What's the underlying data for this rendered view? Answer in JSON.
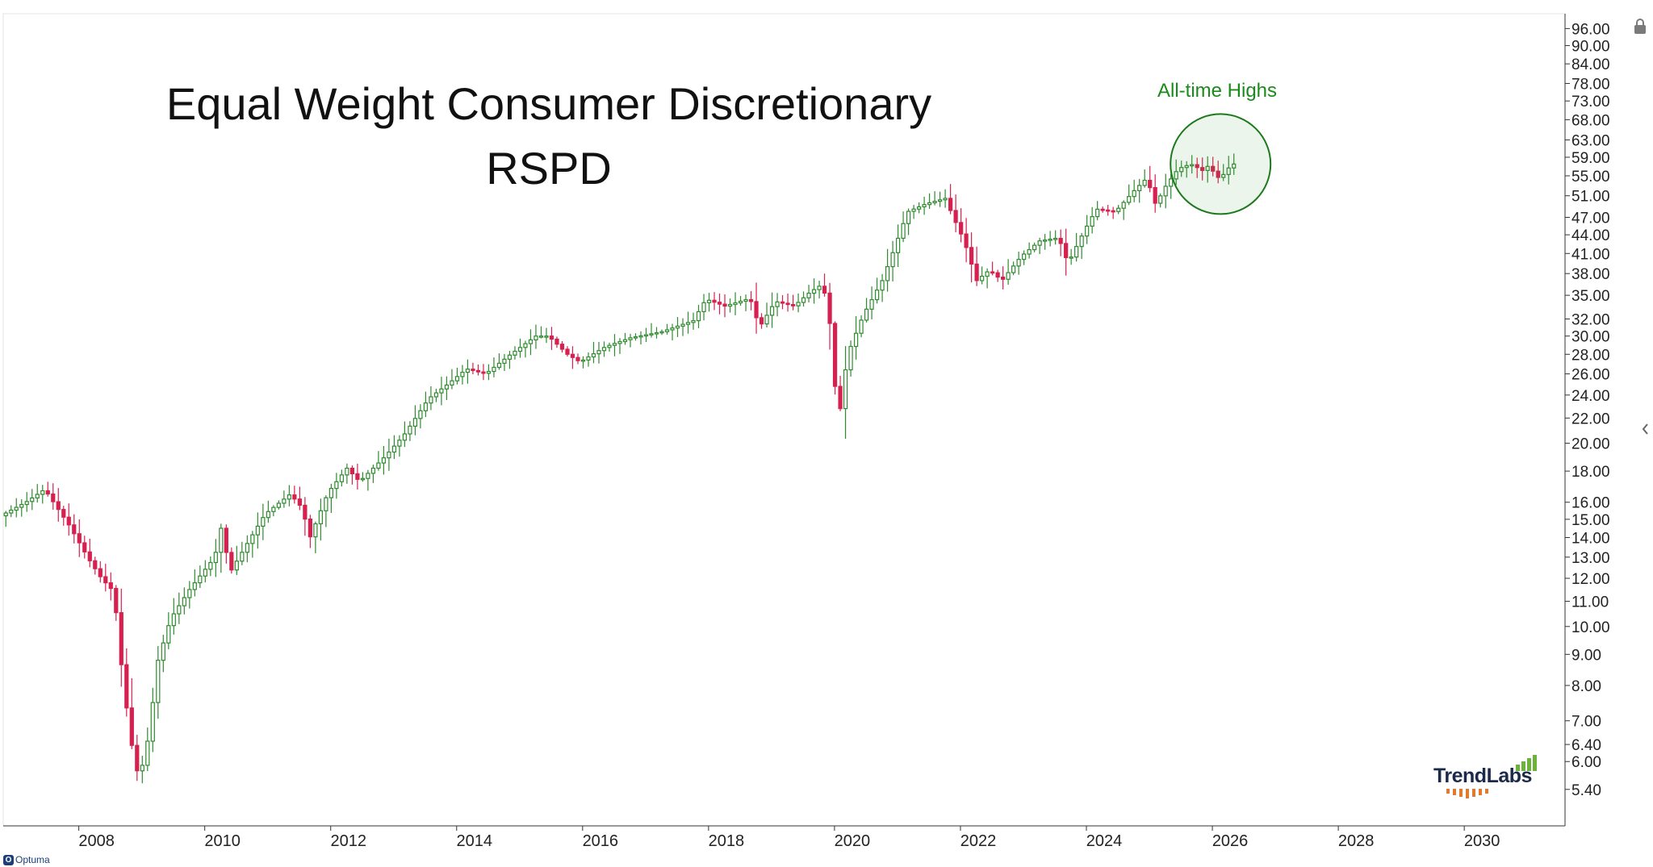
{
  "chart_data": {
    "type": "candlestick",
    "title": "Equal Weight Consumer Discretionary",
    "subtitle": "RSPD",
    "annotation": "All-time Highs",
    "y_scale": "log",
    "ylim": [
      5.0,
      97.0
    ],
    "xlim": [
      2006.8,
      2031.6
    ],
    "x_ticks": [
      "2008",
      "2010",
      "2012",
      "2014",
      "2016",
      "2018",
      "2020",
      "2022",
      "2024",
      "2026",
      "2028",
      "2030"
    ],
    "y_ticks": [
      "96.00",
      "90.00",
      "84.00",
      "78.00",
      "73.00",
      "68.00",
      "63.00",
      "59.00",
      "55.00",
      "51.00",
      "47.00",
      "44.00",
      "41.00",
      "38.00",
      "35.00",
      "32.00",
      "30.00",
      "28.00",
      "26.00",
      "24.00",
      "22.00",
      "20.00",
      "18.00",
      "16.00",
      "15.00",
      "14.00",
      "13.00",
      "12.00",
      "11.00",
      "10.00",
      "9.00",
      "8.00",
      "7.00",
      "6.40",
      "6.00",
      "5.40"
    ],
    "grid": false,
    "up_color": "#2e8b2e",
    "down_color": "#d6204f",
    "annotation_color": "#1a8a1a",
    "highlight": {
      "x": 2026.13,
      "y": 57.5
    },
    "path": [
      [
        2006.8,
        15.2
      ],
      [
        2007.2,
        16.0
      ],
      [
        2007.5,
        16.8
      ],
      [
        2007.9,
        14.6
      ],
      [
        2008.2,
        12.9
      ],
      [
        2008.4,
        12.0
      ],
      [
        2008.6,
        11.4
      ],
      [
        2008.75,
        8.0
      ],
      [
        2008.9,
        6.2
      ],
      [
        2009.0,
        5.6
      ],
      [
        2009.15,
        6.6
      ],
      [
        2009.3,
        8.8
      ],
      [
        2009.5,
        10.3
      ],
      [
        2009.8,
        11.5
      ],
      [
        2010.2,
        13.0
      ],
      [
        2010.3,
        14.5
      ],
      [
        2010.45,
        12.3
      ],
      [
        2010.7,
        13.6
      ],
      [
        2011.0,
        15.3
      ],
      [
        2011.4,
        16.5
      ],
      [
        2011.6,
        15.6
      ],
      [
        2011.7,
        13.9
      ],
      [
        2012.0,
        16.6
      ],
      [
        2012.3,
        18.2
      ],
      [
        2012.5,
        17.3
      ],
      [
        2012.9,
        19.0
      ],
      [
        2013.2,
        20.6
      ],
      [
        2013.6,
        23.7
      ],
      [
        2013.9,
        25.0
      ],
      [
        2014.2,
        26.5
      ],
      [
        2014.5,
        26.0
      ],
      [
        2014.9,
        28.0
      ],
      [
        2015.3,
        30.0
      ],
      [
        2015.5,
        30.0
      ],
      [
        2015.8,
        28.0
      ],
      [
        2016.0,
        27.2
      ],
      [
        2016.4,
        28.8
      ],
      [
        2016.8,
        29.8
      ],
      [
        2017.3,
        30.5
      ],
      [
        2017.8,
        31.8
      ],
      [
        2018.0,
        34.5
      ],
      [
        2018.3,
        33.6
      ],
      [
        2018.7,
        34.6
      ],
      [
        2018.85,
        31.0
      ],
      [
        2019.1,
        34.2
      ],
      [
        2019.4,
        33.6
      ],
      [
        2019.65,
        35.4
      ],
      [
        2019.85,
        36.5
      ],
      [
        2019.95,
        33.0
      ],
      [
        2020.1,
        21.5
      ],
      [
        2020.25,
        28.0
      ],
      [
        2020.5,
        32.5
      ],
      [
        2020.8,
        37.0
      ],
      [
        2021.0,
        42.0
      ],
      [
        2021.2,
        48.0
      ],
      [
        2021.5,
        49.5
      ],
      [
        2021.8,
        50.5
      ],
      [
        2021.95,
        46.5
      ],
      [
        2022.1,
        43.0
      ],
      [
        2022.3,
        37.0
      ],
      [
        2022.5,
        38.5
      ],
      [
        2022.7,
        37.0
      ],
      [
        2023.0,
        40.5
      ],
      [
        2023.3,
        43.0
      ],
      [
        2023.6,
        43.5
      ],
      [
        2023.75,
        39.5
      ],
      [
        2024.0,
        44.5
      ],
      [
        2024.2,
        48.5
      ],
      [
        2024.5,
        48.0
      ],
      [
        2024.8,
        52.0
      ],
      [
        2025.0,
        54.5
      ],
      [
        2025.15,
        49.0
      ],
      [
        2025.25,
        52.0
      ],
      [
        2025.5,
        56.5
      ],
      [
        2025.7,
        57.5
      ],
      [
        2025.9,
        56.0
      ],
      [
        2026.0,
        57.5
      ],
      [
        2026.1,
        54.5
      ],
      [
        2026.2,
        55.0
      ],
      [
        2026.35,
        57.5
      ]
    ]
  },
  "logo": {
    "text": "TrendLabs"
  },
  "footer": {
    "brand": "Optuma"
  },
  "icons": {
    "lock": "lock-icon",
    "collapse": "chevron-left-icon"
  }
}
